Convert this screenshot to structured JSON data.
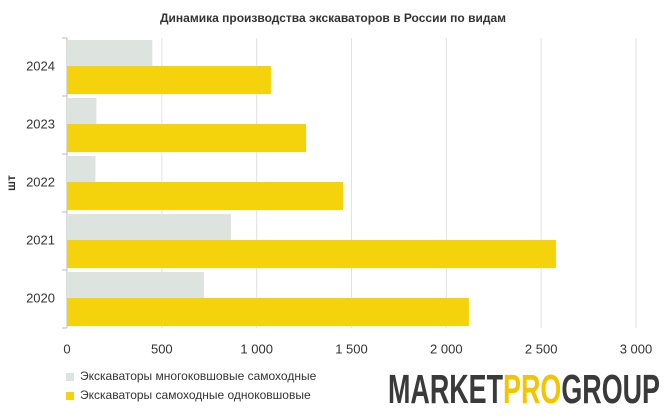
{
  "chart_data": {
    "type": "bar",
    "orientation": "horizontal",
    "title": "Динамика производства экскаваторов в России по видам",
    "y_label": "шт",
    "categories": [
      "2024",
      "2023",
      "2022",
      "2021",
      "2020"
    ],
    "series": [
      {
        "name": "Экскаваторы многоковшовые самоходные",
        "color": "#dde4e0",
        "values": [
          450,
          155,
          150,
          865,
          722
        ]
      },
      {
        "name": "Экскаваторы самоходные одноковшовые",
        "color": "#f4d20c",
        "values": [
          1075,
          1260,
          1455,
          2578,
          2119
        ]
      }
    ],
    "xlim": [
      0,
      3000
    ],
    "xticks": [
      0,
      500,
      {
        "value": 1000,
        "label": "1 000"
      },
      {
        "value": 1500,
        "label": "1 500"
      },
      {
        "value": 2000,
        "label": "2 000"
      },
      {
        "value": 2500,
        "label": "2 500"
      },
      {
        "value": 3000,
        "label": "3 000"
      }
    ],
    "grid": true
  },
  "logo": {
    "parts": [
      "MARKET",
      "PRO",
      "GROUP"
    ]
  }
}
